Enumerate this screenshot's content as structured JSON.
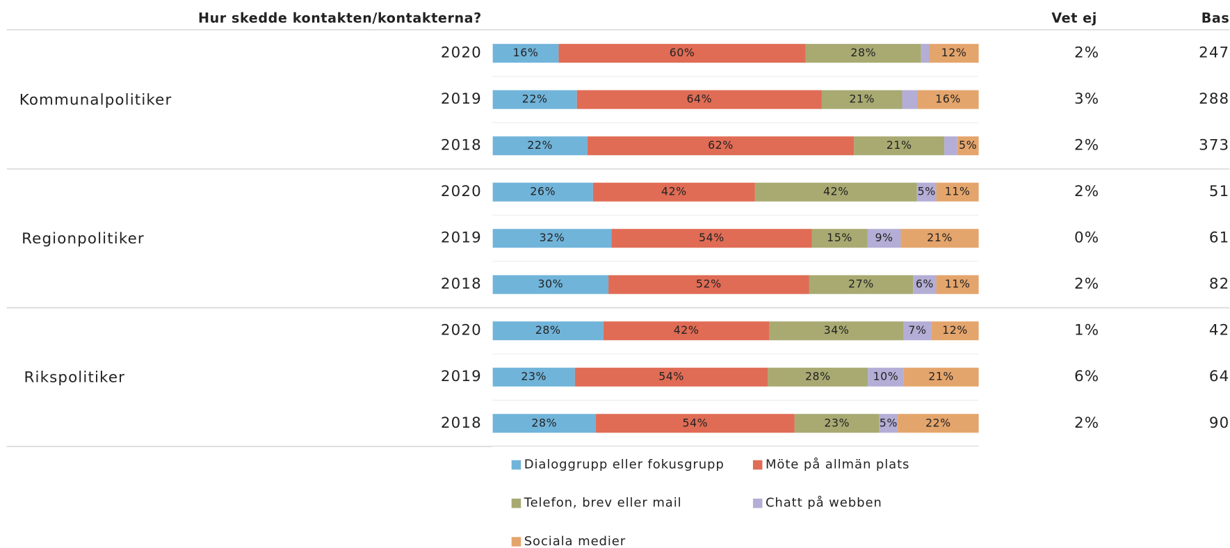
{
  "chart_data": {
    "type": "stacked_bar_100",
    "title": "Hur skedde kontakten/kontakterna?",
    "groups": [
      {
        "name": "Kommunalpolitiker",
        "categories": [
          "2020",
          "2019",
          "2018"
        ]
      },
      {
        "name": "Regionpolitiker",
        "categories": [
          "2020",
          "2019",
          "2018"
        ]
      },
      {
        "name": "Rikspolitiker",
        "categories": [
          "2020",
          "2019",
          "2018"
        ]
      }
    ],
    "series": [
      {
        "name": "Dialoggrupp eller fokusgrupp",
        "color": "#71b4da",
        "values": [
          16,
          22,
          22,
          26,
          32,
          30,
          28,
          23,
          28
        ],
        "value_labels": [
          "16%",
          "22%",
          "22%",
          "26%",
          "32%",
          "30%",
          "28%",
          "23%",
          "28%"
        ]
      },
      {
        "name": "Möte på allmän plats",
        "color": "#e06c55",
        "values": [
          60,
          64,
          62,
          42,
          54,
          52,
          42,
          54,
          54
        ],
        "value_labels": [
          "60%",
          "64%",
          "62%",
          "42%",
          "54%",
          "52%",
          "42%",
          "54%",
          "54%"
        ]
      },
      {
        "name": "Telefon, brev eller mail",
        "color": "#a8aa72",
        "values": [
          28,
          21,
          21,
          42,
          15,
          27,
          34,
          28,
          23
        ],
        "value_labels": [
          "28%",
          "21%",
          "21%",
          "42%",
          "15%",
          "27%",
          "34%",
          "28%",
          "23%"
        ]
      },
      {
        "name": "Chatt på webben",
        "color": "#b4aed6",
        "values": [
          2,
          4,
          3,
          5,
          9,
          6,
          7,
          10,
          5
        ],
        "value_labels": [
          null,
          null,
          null,
          "5%",
          "9%",
          "6%",
          "7%",
          "10%",
          "5%"
        ]
      },
      {
        "name": "Sociala medier",
        "color": "#e4a56c",
        "values": [
          12,
          16,
          5,
          11,
          21,
          11,
          12,
          21,
          22
        ],
        "value_labels": [
          "12%",
          "16%",
          "5%",
          "11%",
          "21%",
          "11%",
          "12%",
          "21%",
          "22%"
        ]
      }
    ],
    "vet_ej": {
      "header": "Vet ej",
      "values": [
        2,
        3,
        2,
        2,
        0,
        2,
        1,
        6,
        2
      ],
      "value_labels": [
        "2%",
        "3%",
        "2%",
        "2%",
        "0%",
        "2%",
        "1%",
        "6%",
        "2%"
      ]
    },
    "bas": {
      "header": "Bas",
      "values": [
        247,
        288,
        373,
        51,
        61,
        82,
        42,
        64,
        90
      ]
    }
  }
}
